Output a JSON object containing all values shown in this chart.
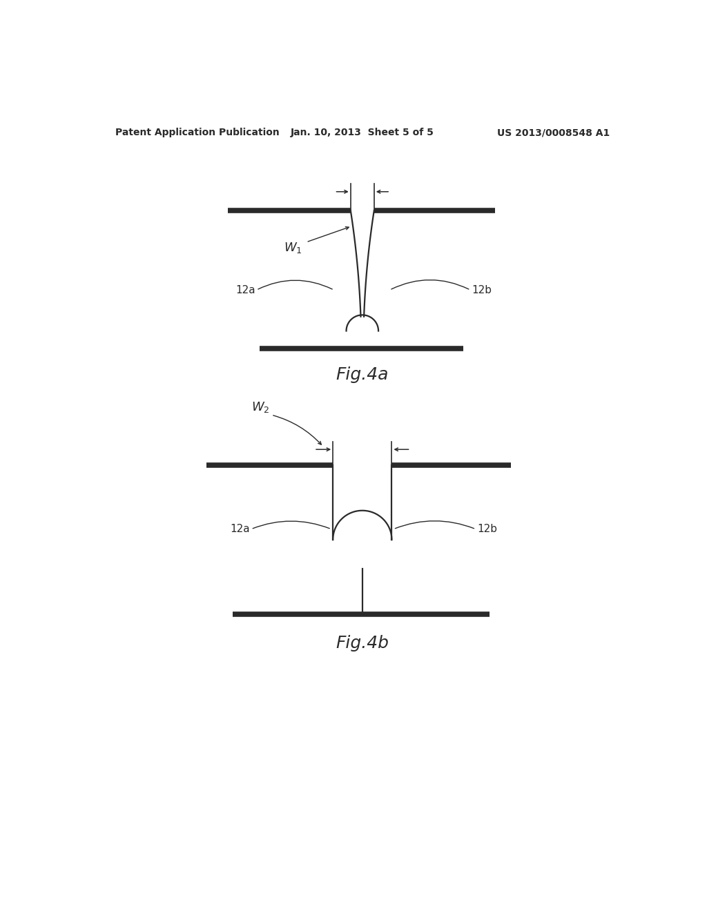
{
  "background_color": "#ffffff",
  "header_left": "Patent Application Publication",
  "header_center": "Jan. 10, 2013  Sheet 5 of 5",
  "header_right": "US 2013/0008548 A1",
  "header_fontsize": 10,
  "fig4a_caption": "Fig.4a",
  "fig4b_caption": "Fig.4b",
  "line_color": "#2a2a2a",
  "line_width": 1.6,
  "text_color": "#2a2a2a"
}
